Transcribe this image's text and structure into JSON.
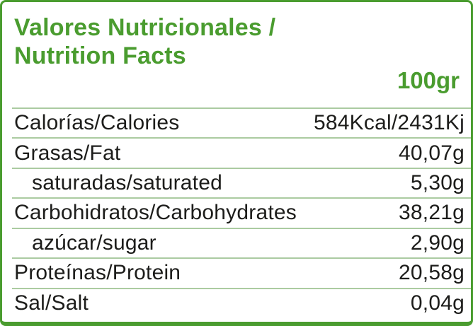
{
  "label": {
    "title_line1": "Valores Nutricionales /",
    "title_line2": "Nutrition Facts",
    "serving_size": "100gr",
    "rows": [
      {
        "name": "Calorías/Calories",
        "value": "584Kcal/2431Kj",
        "indent": false
      },
      {
        "name": "Grasas/Fat",
        "value": "40,07g",
        "indent": false
      },
      {
        "name": "saturadas/saturated",
        "value": "5,30g",
        "indent": true
      },
      {
        "name": "Carbohidratos/Carbohydrates",
        "value": "38,21g",
        "indent": false
      },
      {
        "name": "azúcar/sugar",
        "value": "2,90g",
        "indent": true
      },
      {
        "name": "Proteínas/Protein",
        "value": "20,58g",
        "indent": false
      },
      {
        "name": "Sal/Salt",
        "value": "0,04g",
        "indent": false
      }
    ],
    "colors": {
      "accent_green": "#4a9c2f",
      "separator_green": "#abcba1",
      "text": "#1d1d1b",
      "background": "#ffffff"
    }
  }
}
